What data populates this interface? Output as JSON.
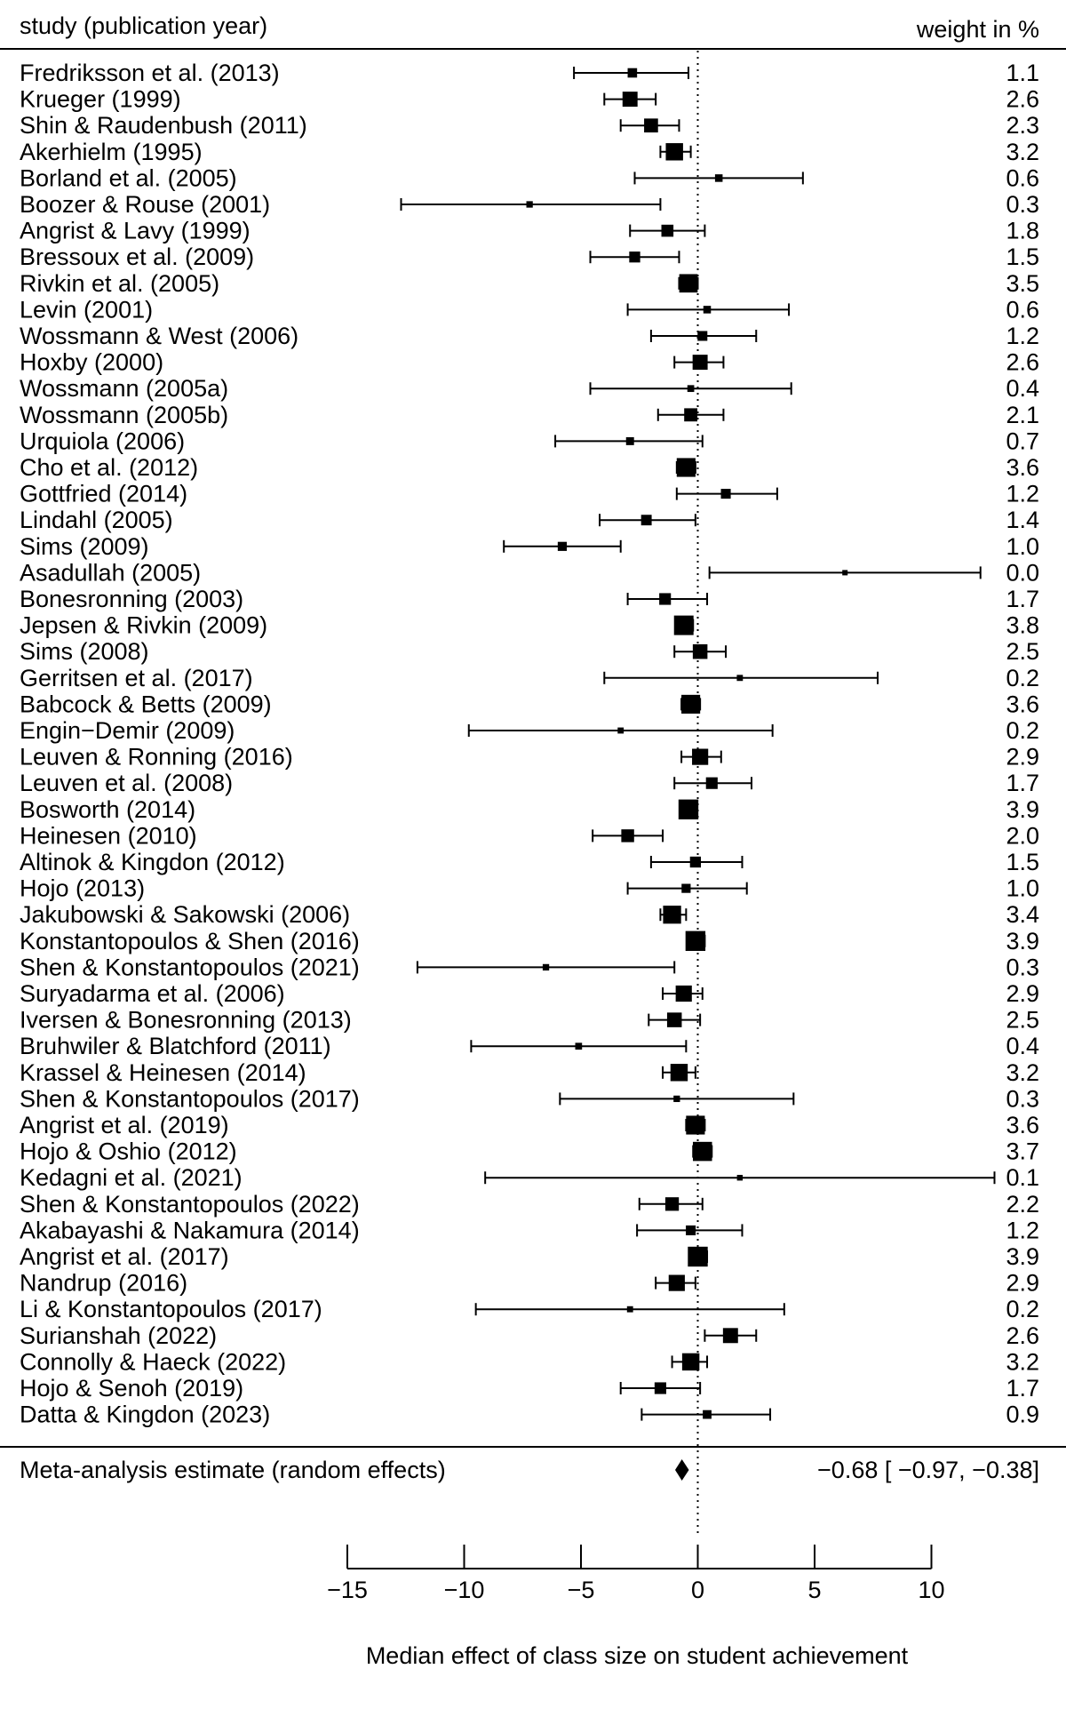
{
  "chart_data": {
    "type": "forest",
    "header": {
      "left": "study (publication year)",
      "right": "weight in %"
    },
    "xlabel": "Median effect of class size on student achievement",
    "xlim": [
      -15,
      10
    ],
    "xticks": [
      -15,
      -10,
      -5,
      0,
      5,
      10
    ],
    "xtick_labels": [
      "−15",
      "−10",
      "−5",
      "0",
      "5",
      "10"
    ],
    "reference_line": 0,
    "studies": [
      {
        "label": "Fredriksson et al. (2013)",
        "est": -2.8,
        "lo": -5.3,
        "hi": -0.4,
        "weight": "1.1"
      },
      {
        "label": "Krueger (1999)",
        "est": -2.9,
        "lo": -4.0,
        "hi": -1.8,
        "weight": "2.6"
      },
      {
        "label": "Shin & Raudenbush (2011)",
        "est": -2.0,
        "lo": -3.3,
        "hi": -0.8,
        "weight": "2.3"
      },
      {
        "label": "Akerhielm (1995)",
        "est": -1.0,
        "lo": -1.6,
        "hi": -0.3,
        "weight": "3.2"
      },
      {
        "label": "Borland et al. (2005)",
        "est": 0.9,
        "lo": -2.7,
        "hi": 4.5,
        "weight": "0.6"
      },
      {
        "label": "Boozer & Rouse (2001)",
        "est": -7.2,
        "lo": -12.7,
        "hi": -1.6,
        "weight": "0.3"
      },
      {
        "label": "Angrist & Lavy (1999)",
        "est": -1.3,
        "lo": -2.9,
        "hi": 0.3,
        "weight": "1.8"
      },
      {
        "label": "Bressoux et al. (2009)",
        "est": -2.7,
        "lo": -4.6,
        "hi": -0.8,
        "weight": "1.5"
      },
      {
        "label": "Rivkin et al. (2005)",
        "est": -0.4,
        "lo": -0.8,
        "hi": 0.0,
        "weight": "3.5"
      },
      {
        "label": "Levin (2001)",
        "est": 0.4,
        "lo": -3.0,
        "hi": 3.9,
        "weight": "0.6"
      },
      {
        "label": "Wossmann & West (2006)",
        "est": 0.2,
        "lo": -2.0,
        "hi": 2.5,
        "weight": "1.2"
      },
      {
        "label": "Hoxby (2000)",
        "est": 0.1,
        "lo": -1.0,
        "hi": 1.1,
        "weight": "2.6"
      },
      {
        "label": "Wossmann (2005a)",
        "est": -0.3,
        "lo": -4.6,
        "hi": 4.0,
        "weight": "0.4"
      },
      {
        "label": "Wossmann (2005b)",
        "est": -0.3,
        "lo": -1.7,
        "hi": 1.1,
        "weight": "2.1"
      },
      {
        "label": "Urquiola (2006)",
        "est": -2.9,
        "lo": -6.1,
        "hi": 0.2,
        "weight": "0.7"
      },
      {
        "label": "Cho et al. (2012)",
        "est": -0.5,
        "lo": -0.9,
        "hi": -0.1,
        "weight": "3.6"
      },
      {
        "label": "Gottfried (2014)",
        "est": 1.2,
        "lo": -0.9,
        "hi": 3.4,
        "weight": "1.2"
      },
      {
        "label": "Lindahl (2005)",
        "est": -2.2,
        "lo": -4.2,
        "hi": -0.1,
        "weight": "1.4"
      },
      {
        "label": "Sims (2009)",
        "est": -5.8,
        "lo": -8.3,
        "hi": -3.3,
        "weight": "1.0"
      },
      {
        "label": "Asadullah (2005)",
        "est": 6.3,
        "lo": 0.5,
        "hi": 12.1,
        "weight": "0.0"
      },
      {
        "label": "Bonesronning (2003)",
        "est": -1.4,
        "lo": -3.0,
        "hi": 0.4,
        "weight": "1.7"
      },
      {
        "label": "Jepsen & Rivkin (2009)",
        "est": -0.6,
        "lo": -0.9,
        "hi": -0.2,
        "weight": "3.8"
      },
      {
        "label": "Sims (2008)",
        "est": 0.1,
        "lo": -1.0,
        "hi": 1.2,
        "weight": "2.5"
      },
      {
        "label": "Gerritsen et al. (2017)",
        "est": 1.8,
        "lo": -4.0,
        "hi": 7.7,
        "weight": "0.2"
      },
      {
        "label": "Babcock & Betts (2009)",
        "est": -0.3,
        "lo": -0.7,
        "hi": 0.1,
        "weight": "3.6"
      },
      {
        "label": "Engin−Demir (2009)",
        "est": -3.3,
        "lo": -9.8,
        "hi": 3.2,
        "weight": "0.2"
      },
      {
        "label": "Leuven & Ronning (2016)",
        "est": 0.1,
        "lo": -0.7,
        "hi": 1.0,
        "weight": "2.9"
      },
      {
        "label": "Leuven et al. (2008)",
        "est": 0.6,
        "lo": -1.0,
        "hi": 2.3,
        "weight": "1.7"
      },
      {
        "label": "Bosworth (2014)",
        "est": -0.4,
        "lo": -0.7,
        "hi": -0.1,
        "weight": "3.9"
      },
      {
        "label": "Heinesen (2010)",
        "est": -3.0,
        "lo": -4.5,
        "hi": -1.5,
        "weight": "2.0"
      },
      {
        "label": "Altinok & Kingdon (2012)",
        "est": -0.1,
        "lo": -2.0,
        "hi": 1.9,
        "weight": "1.5"
      },
      {
        "label": "Hojo (2013)",
        "est": -0.5,
        "lo": -3.0,
        "hi": 2.1,
        "weight": "1.0"
      },
      {
        "label": "Jakubowski & Sakowski (2006)",
        "est": -1.1,
        "lo": -1.6,
        "hi": -0.5,
        "weight": "3.4"
      },
      {
        "label": "Konstantopoulos & Shen (2016)",
        "est": -0.1,
        "lo": -0.4,
        "hi": 0.3,
        "weight": "3.9"
      },
      {
        "label": "Shen & Konstantopoulos (2021)",
        "est": -6.5,
        "lo": -12.0,
        "hi": -1.0,
        "weight": "0.3"
      },
      {
        "label": "Suryadarma et al. (2006)",
        "est": -0.6,
        "lo": -1.5,
        "hi": 0.2,
        "weight": "2.9"
      },
      {
        "label": "Iversen & Bonesronning (2013)",
        "est": -1.0,
        "lo": -2.1,
        "hi": 0.1,
        "weight": "2.5"
      },
      {
        "label": "Bruhwiler & Blatchford (2011)",
        "est": -5.1,
        "lo": -9.7,
        "hi": -0.5,
        "weight": "0.4"
      },
      {
        "label": "Krassel & Heinesen (2014)",
        "est": -0.8,
        "lo": -1.5,
        "hi": -0.1,
        "weight": "3.2"
      },
      {
        "label": "Shen & Konstantopoulos (2017)",
        "est": -0.9,
        "lo": -5.9,
        "hi": 4.1,
        "weight": "0.3"
      },
      {
        "label": "Angrist et al. (2019)",
        "est": -0.1,
        "lo": -0.5,
        "hi": 0.3,
        "weight": "3.6"
      },
      {
        "label": "Hojo & Oshio (2012)",
        "est": 0.2,
        "lo": -0.2,
        "hi": 0.6,
        "weight": "3.7"
      },
      {
        "label": "Kedagni et al. (2021)",
        "est": 1.8,
        "lo": -9.1,
        "hi": 12.7,
        "weight": "0.1"
      },
      {
        "label": "Shen & Konstantopoulos (2022)",
        "est": -1.1,
        "lo": -2.5,
        "hi": 0.2,
        "weight": "2.2"
      },
      {
        "label": "Akabayashi & Nakamura (2014)",
        "est": -0.3,
        "lo": -2.6,
        "hi": 1.9,
        "weight": "1.2"
      },
      {
        "label": "Angrist et al. (2017)",
        "est": 0.0,
        "lo": -0.3,
        "hi": 0.4,
        "weight": "3.9"
      },
      {
        "label": "Nandrup (2016)",
        "est": -0.9,
        "lo": -1.8,
        "hi": -0.1,
        "weight": "2.9"
      },
      {
        "label": "Li & Konstantopoulos (2017)",
        "est": -2.9,
        "lo": -9.5,
        "hi": 3.7,
        "weight": "0.2"
      },
      {
        "label": "Surianshah (2022)",
        "est": 1.4,
        "lo": 0.3,
        "hi": 2.5,
        "weight": "2.6"
      },
      {
        "label": "Connolly & Haeck (2022)",
        "est": -0.3,
        "lo": -1.1,
        "hi": 0.4,
        "weight": "3.2"
      },
      {
        "label": "Hojo & Senoh (2019)",
        "est": -1.6,
        "lo": -3.3,
        "hi": 0.1,
        "weight": "1.7"
      },
      {
        "label": "Datta & Kingdon (2023)",
        "est": 0.4,
        "lo": -2.4,
        "hi": 3.1,
        "weight": "0.9"
      }
    ],
    "summary": {
      "label": "Meta-analysis estimate (random effects)",
      "est": -0.68,
      "lo": -0.97,
      "hi": -0.38,
      "text": "−0.68 [ −0.97, −0.38]"
    }
  }
}
